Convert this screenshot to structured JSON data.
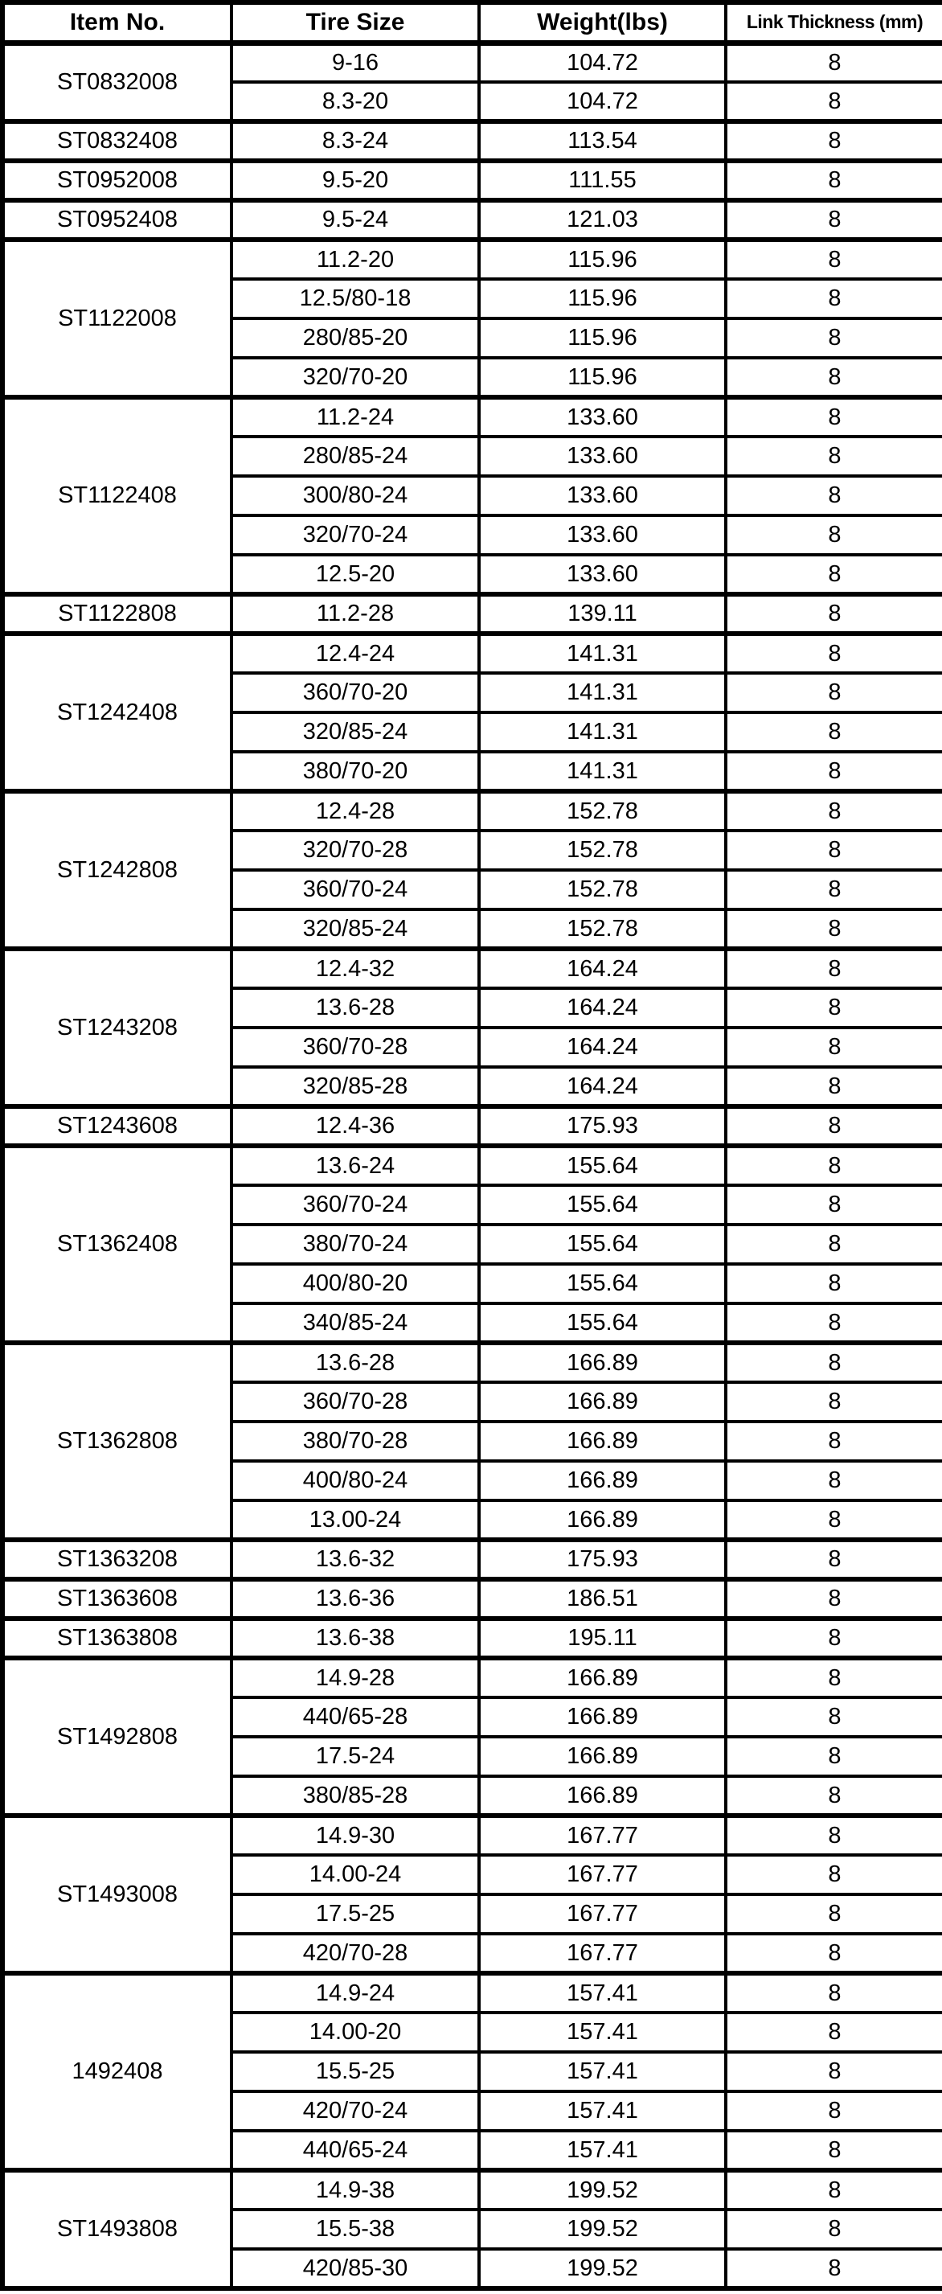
{
  "colors": {
    "border": "#000000",
    "text": "#000000",
    "background": "#ffffff"
  },
  "chart_data": {
    "type": "table",
    "columns": [
      "Item No.",
      "Tire Size",
      "Weight(lbs)",
      "Link Thickness (mm)"
    ],
    "groups": [
      {
        "item_no": "ST0832008",
        "rows": [
          [
            "9-16",
            "104.72",
            "8"
          ],
          [
            "8.3-20",
            "104.72",
            "8"
          ]
        ]
      },
      {
        "item_no": "ST0832408",
        "rows": [
          [
            "8.3-24",
            "113.54",
            "8"
          ]
        ]
      },
      {
        "item_no": "ST0952008",
        "rows": [
          [
            "9.5-20",
            "111.55",
            "8"
          ]
        ]
      },
      {
        "item_no": "ST0952408",
        "rows": [
          [
            "9.5-24",
            "121.03",
            "8"
          ]
        ]
      },
      {
        "item_no": "ST1122008",
        "rows": [
          [
            "11.2-20",
            "115.96",
            "8"
          ],
          [
            "12.5/80-18",
            "115.96",
            "8"
          ],
          [
            "280/85-20",
            "115.96",
            "8"
          ],
          [
            "320/70-20",
            "115.96",
            "8"
          ]
        ]
      },
      {
        "item_no": "ST1122408",
        "rows": [
          [
            "11.2-24",
            "133.60",
            "8"
          ],
          [
            "280/85-24",
            "133.60",
            "8"
          ],
          [
            "300/80-24",
            "133.60",
            "8"
          ],
          [
            "320/70-24",
            "133.60",
            "8"
          ],
          [
            "12.5-20",
            "133.60",
            "8"
          ]
        ]
      },
      {
        "item_no": "ST1122808",
        "rows": [
          [
            "11.2-28",
            "139.11",
            "8"
          ]
        ]
      },
      {
        "item_no": "ST1242408",
        "rows": [
          [
            "12.4-24",
            "141.31",
            "8"
          ],
          [
            "360/70-20",
            "141.31",
            "8"
          ],
          [
            "320/85-24",
            "141.31",
            "8"
          ],
          [
            "380/70-20",
            "141.31",
            "8"
          ]
        ]
      },
      {
        "item_no": "ST1242808",
        "rows": [
          [
            "12.4-28",
            "152.78",
            "8"
          ],
          [
            "320/70-28",
            "152.78",
            "8"
          ],
          [
            "360/70-24",
            "152.78",
            "8"
          ],
          [
            "320/85-24",
            "152.78",
            "8"
          ]
        ]
      },
      {
        "item_no": "ST1243208",
        "rows": [
          [
            "12.4-32",
            "164.24",
            "8"
          ],
          [
            "13.6-28",
            "164.24",
            "8"
          ],
          [
            "360/70-28",
            "164.24",
            "8"
          ],
          [
            "320/85-28",
            "164.24",
            "8"
          ]
        ]
      },
      {
        "item_no": "ST1243608",
        "rows": [
          [
            "12.4-36",
            "175.93",
            "8"
          ]
        ]
      },
      {
        "item_no": "ST1362408",
        "rows": [
          [
            "13.6-24",
            "155.64",
            "8"
          ],
          [
            "360/70-24",
            "155.64",
            "8"
          ],
          [
            "380/70-24",
            "155.64",
            "8"
          ],
          [
            "400/80-20",
            "155.64",
            "8"
          ],
          [
            "340/85-24",
            "155.64",
            "8"
          ]
        ]
      },
      {
        "item_no": "ST1362808",
        "rows": [
          [
            "13.6-28",
            "166.89",
            "8"
          ],
          [
            "360/70-28",
            "166.89",
            "8"
          ],
          [
            "380/70-28",
            "166.89",
            "8"
          ],
          [
            "400/80-24",
            "166.89",
            "8"
          ],
          [
            "13.00-24",
            "166.89",
            "8"
          ]
        ]
      },
      {
        "item_no": "ST1363208",
        "rows": [
          [
            "13.6-32",
            "175.93",
            "8"
          ]
        ]
      },
      {
        "item_no": "ST1363608",
        "rows": [
          [
            "13.6-36",
            "186.51",
            "8"
          ]
        ]
      },
      {
        "item_no": "ST1363808",
        "rows": [
          [
            "13.6-38",
            "195.11",
            "8"
          ]
        ]
      },
      {
        "item_no": "ST1492808",
        "rows": [
          [
            "14.9-28",
            "166.89",
            "8"
          ],
          [
            "440/65-28",
            "166.89",
            "8"
          ],
          [
            "17.5-24",
            "166.89",
            "8"
          ],
          [
            "380/85-28",
            "166.89",
            "8"
          ]
        ]
      },
      {
        "item_no": "ST1493008",
        "rows": [
          [
            "14.9-30",
            "167.77",
            "8"
          ],
          [
            "14.00-24",
            "167.77",
            "8"
          ],
          [
            "17.5-25",
            "167.77",
            "8"
          ],
          [
            "420/70-28",
            "167.77",
            "8"
          ]
        ]
      },
      {
        "item_no": "1492408",
        "rows": [
          [
            "14.9-24",
            "157.41",
            "8"
          ],
          [
            "14.00-20",
            "157.41",
            "8"
          ],
          [
            "15.5-25",
            "157.41",
            "8"
          ],
          [
            "420/70-24",
            "157.41",
            "8"
          ],
          [
            "440/65-24",
            "157.41",
            "8"
          ]
        ]
      },
      {
        "item_no": "ST1493808",
        "rows": [
          [
            "14.9-38",
            "199.52",
            "8"
          ],
          [
            "15.5-38",
            "199.52",
            "8"
          ],
          [
            "420/85-30",
            "199.52",
            "8"
          ]
        ]
      }
    ]
  }
}
